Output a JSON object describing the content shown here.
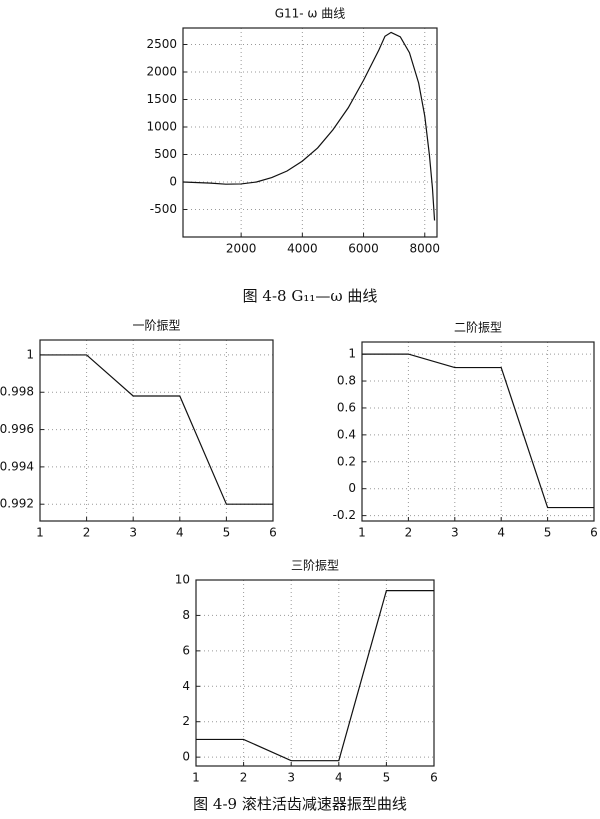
{
  "captions": [
    "图 4-8 G₁₁—ω 曲线",
    "图 4-9 滚柱活齿减速器振型曲线"
  ],
  "chart_data": [
    {
      "type": "line",
      "title": "G11- ω 曲线",
      "color": "#111111",
      "grid": true,
      "x": [
        100,
        1000,
        1500,
        2000,
        2500,
        3000,
        3500,
        4000,
        4500,
        5000,
        5500,
        6000,
        6500,
        6700,
        6900,
        7200,
        7500,
        7800,
        8000,
        8150,
        8250,
        8320
      ],
      "values": [
        0,
        -20,
        -40,
        -35,
        0,
        80,
        200,
        380,
        620,
        950,
        1350,
        1850,
        2400,
        2650,
        2720,
        2640,
        2350,
        1800,
        1200,
        500,
        -100,
        -700
      ],
      "xlim": [
        100,
        8400
      ],
      "ylim": [
        -1000,
        2800
      ],
      "xticks": [
        2000,
        4000,
        6000,
        8000
      ],
      "yticks": [
        -500,
        0,
        500,
        1000,
        1500,
        2000,
        2500
      ]
    },
    {
      "type": "line",
      "title": "一阶振型",
      "color": "#111111",
      "grid": true,
      "x": [
        1,
        2,
        3,
        4,
        5,
        6
      ],
      "values": [
        1,
        1,
        0.9978,
        0.9978,
        0.992,
        0.992
      ],
      "xlim": [
        1,
        6
      ],
      "ylim": [
        0.9911,
        1.0008
      ],
      "xticks": [
        1,
        2,
        3,
        4,
        5,
        6
      ],
      "yticks": [
        0.992,
        0.994,
        0.996,
        0.998,
        1
      ]
    },
    {
      "type": "line",
      "title": "二阶振型",
      "color": "#111111",
      "grid": true,
      "x": [
        1,
        2,
        3,
        4,
        5,
        6
      ],
      "values": [
        1,
        1,
        0.9,
        0.9,
        -0.14,
        -0.14
      ],
      "xlim": [
        1,
        6
      ],
      "ylim": [
        -0.24,
        1.09
      ],
      "xticks": [
        1,
        2,
        3,
        4,
        5,
        6
      ],
      "yticks": [
        -0.2,
        0,
        0.2,
        0.4,
        0.6,
        0.8,
        1
      ]
    },
    {
      "type": "line",
      "title": "三阶振型",
      "color": "#111111",
      "grid": true,
      "x": [
        1,
        2,
        3,
        4,
        5,
        6
      ],
      "values": [
        1,
        1,
        -0.2,
        -0.2,
        9.4,
        9.4
      ],
      "xlim": [
        1,
        6
      ],
      "ylim": [
        -0.5,
        10
      ],
      "xticks": [
        1,
        2,
        3,
        4,
        5,
        6
      ],
      "yticks": [
        0,
        2,
        4,
        6,
        8,
        10
      ]
    }
  ]
}
